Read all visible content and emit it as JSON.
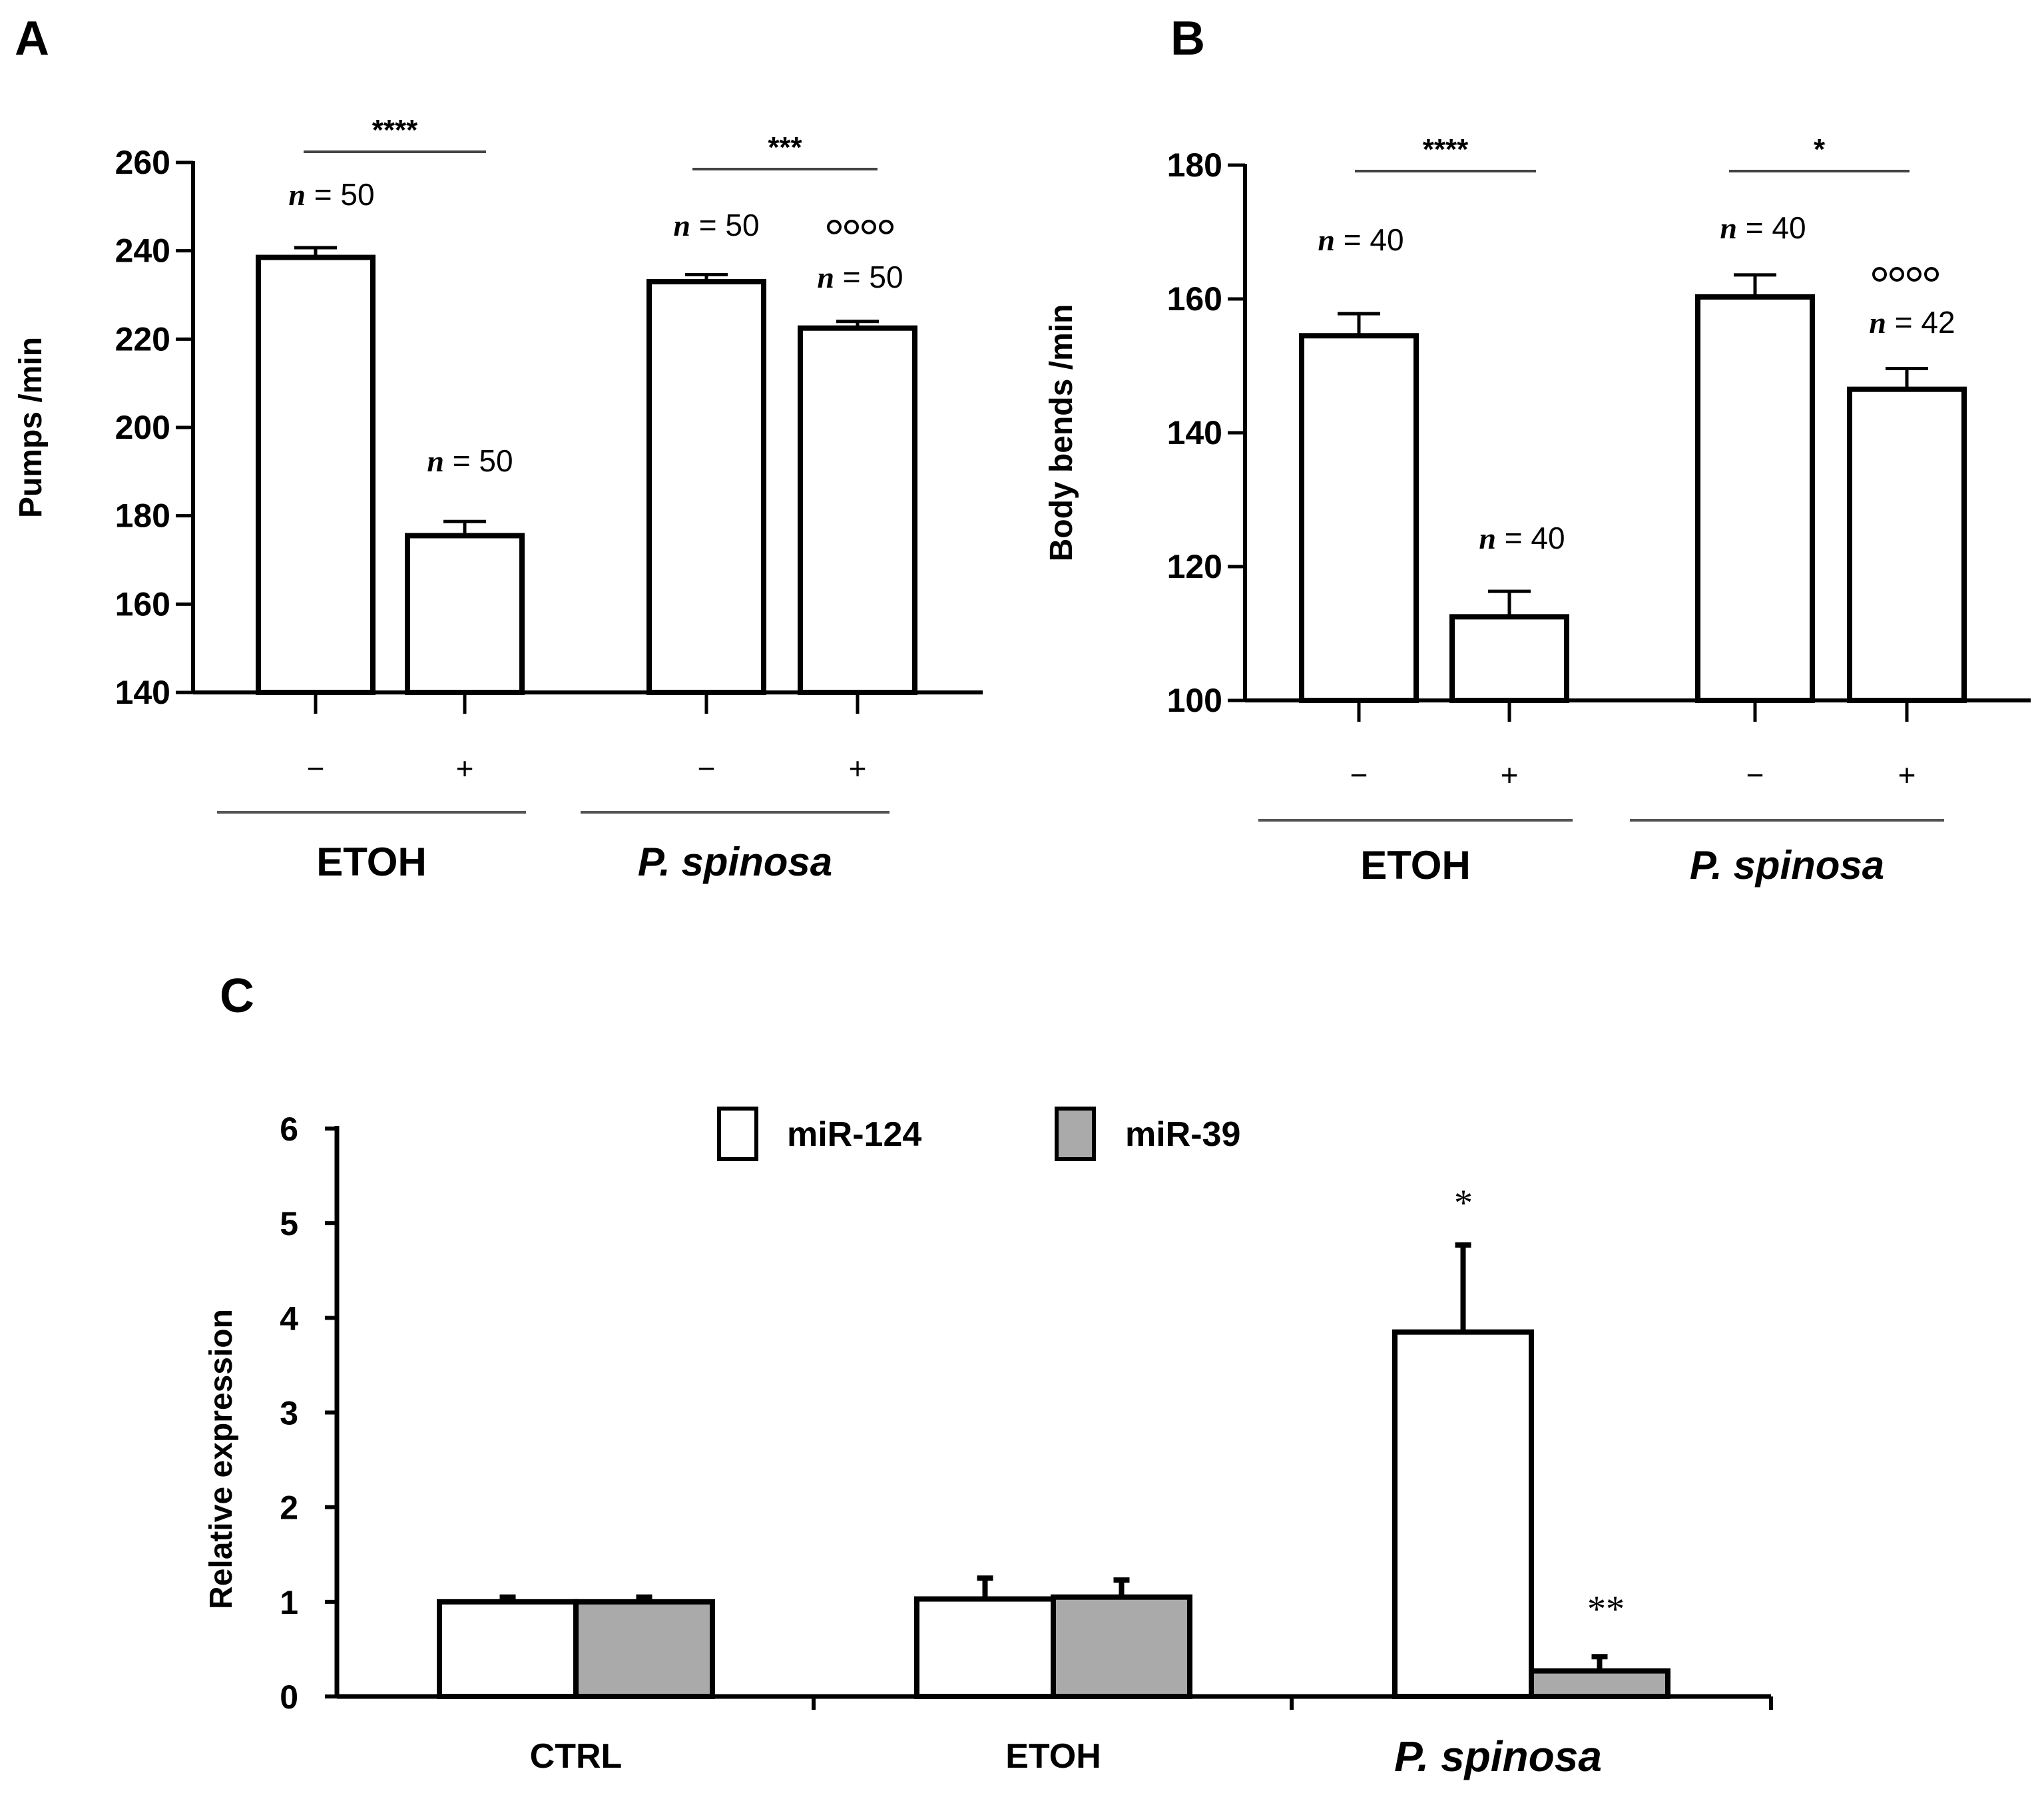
{
  "chart_data": [
    {
      "panel": "A",
      "type": "bar",
      "ylabel": "Pumps /min",
      "ylim": [
        140,
        260
      ],
      "yticks": [
        140,
        160,
        180,
        200,
        220,
        240,
        260
      ],
      "bars": [
        {
          "group": "ETOH",
          "treatment": "−",
          "value": 238.5,
          "error": 2.2,
          "n": "50"
        },
        {
          "group": "ETOH",
          "treatment": "+",
          "value": 175.5,
          "error": 3.2,
          "n": "50"
        },
        {
          "group": "P. spinosa",
          "treatment": "−",
          "value": 233,
          "error": 1.6,
          "n": "50"
        },
        {
          "group": "P. spinosa",
          "treatment": "+",
          "value": 222.5,
          "error": 1.5,
          "n": "50"
        }
      ],
      "groups": [
        "ETOH",
        "P. spinosa"
      ],
      "significance": [
        {
          "between": [
            0,
            1
          ],
          "label": "****"
        },
        {
          "between": [
            2,
            3
          ],
          "label": "***"
        }
      ],
      "extra_marks": [
        {
          "bar": 3,
          "label": "oooo"
        }
      ]
    },
    {
      "panel": "B",
      "type": "bar",
      "ylabel": "Body bends /min",
      "ylim": [
        100,
        180
      ],
      "yticks": [
        100,
        120,
        140,
        160,
        180
      ],
      "bars": [
        {
          "group": "ETOH",
          "treatment": "−",
          "value": 154.5,
          "error": 3.3,
          "n": "40"
        },
        {
          "group": "ETOH",
          "treatment": "+",
          "value": 112.5,
          "error": 3.8,
          "n": "40"
        },
        {
          "group": "P. spinosa",
          "treatment": "−",
          "value": 160.3,
          "error": 3.3,
          "n": "40"
        },
        {
          "group": "P. spinosa",
          "treatment": "+",
          "value": 146.5,
          "error": 3.1,
          "n": "42"
        }
      ],
      "groups": [
        "ETOH",
        "P. spinosa"
      ],
      "significance": [
        {
          "between": [
            0,
            1
          ],
          "label": "****"
        },
        {
          "between": [
            2,
            3
          ],
          "label": "*"
        }
      ],
      "extra_marks": [
        {
          "bar": 3,
          "label": "oooo"
        }
      ]
    },
    {
      "panel": "C",
      "type": "bar",
      "ylabel": "Relative expression",
      "ylim": [
        0,
        6
      ],
      "yticks": [
        0,
        1,
        2,
        3,
        4,
        5,
        6
      ],
      "categories": [
        "CTRL",
        "ETOH",
        "P. spinosa"
      ],
      "series": [
        {
          "name": "miR-124",
          "color": "#ffffff",
          "values": [
            1.0,
            1.03,
            3.85
          ],
          "errors": [
            0.05,
            0.22,
            0.92
          ],
          "sig": [
            "",
            "",
            "*"
          ]
        },
        {
          "name": "miR-39",
          "color": "#aaaaaa",
          "values": [
            1.0,
            1.05,
            0.27
          ],
          "errors": [
            0.05,
            0.18,
            0.15
          ],
          "sig": [
            "",
            "",
            "**"
          ]
        }
      ]
    }
  ]
}
